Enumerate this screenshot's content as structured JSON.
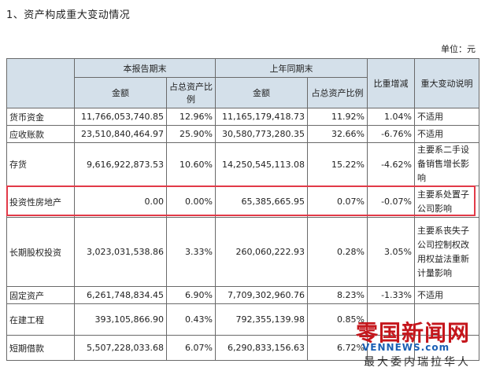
{
  "section_title": "1、资产构成重大变动情况",
  "unit_label": "单位：元",
  "headers": {
    "current_period": "本报告期末",
    "prior_period": "上年同期末",
    "amount": "金额",
    "ratio": "占总资产比例",
    "change": "比重增减",
    "explanation": "重大变动说明"
  },
  "rows": [
    {
      "item": "货币资金",
      "cur_amount": "11,766,053,740.85",
      "cur_ratio": "12.96%",
      "prior_amount": "11,165,179,418.73",
      "prior_ratio": "11.92%",
      "change": "1.04%",
      "note": "不适用"
    },
    {
      "item": "应收账款",
      "cur_amount": "23,510,840,464.97",
      "cur_ratio": "25.90%",
      "prior_amount": "30,580,773,280.35",
      "prior_ratio": "32.66%",
      "change": "-6.76%",
      "note": "不适用"
    },
    {
      "item": "存货",
      "cur_amount": "9,616,922,873.53",
      "cur_ratio": "10.60%",
      "prior_amount": "14,250,545,113.08",
      "prior_ratio": "15.22%",
      "change": "-4.62%",
      "note": "主要系二手设备销售增长影响"
    },
    {
      "item": "投资性房地产",
      "cur_amount": "0.00",
      "cur_ratio": "0.00%",
      "prior_amount": "65,385,665.95",
      "prior_ratio": "0.07%",
      "change": "-0.07%",
      "note": "主要系处置子公司影响"
    },
    {
      "item": "长期股权投资",
      "cur_amount": "3,023,031,538.86",
      "cur_ratio": "3.33%",
      "prior_amount": "260,060,222.93",
      "prior_ratio": "0.28%",
      "change": "3.05%",
      "note": "主要系丧失子公司控制权改用权益法重新计量影响"
    },
    {
      "item": "固定资产",
      "cur_amount": "6,261,748,834.45",
      "cur_ratio": "6.90%",
      "prior_amount": "7,709,302,960.76",
      "prior_ratio": "8.23%",
      "change": "-1.33%",
      "note": "不适用"
    },
    {
      "item": "在建工程",
      "cur_amount": "393,105,866.90",
      "cur_ratio": "0.43%",
      "prior_amount": "792,355,139.98",
      "prior_ratio": "0.85%",
      "change": "",
      "note": ""
    },
    {
      "item": "短期借款",
      "cur_amount": "5,507,228,033.68",
      "cur_ratio": "6.07%",
      "prior_amount": "6,290,833,156.63",
      "prior_ratio": "6.72%",
      "change": "",
      "note": ""
    }
  ],
  "watermark": {
    "cn": "零国新闻网",
    "en": "VENNEWS.com",
    "tagline": "最大委内瑞拉华人"
  }
}
